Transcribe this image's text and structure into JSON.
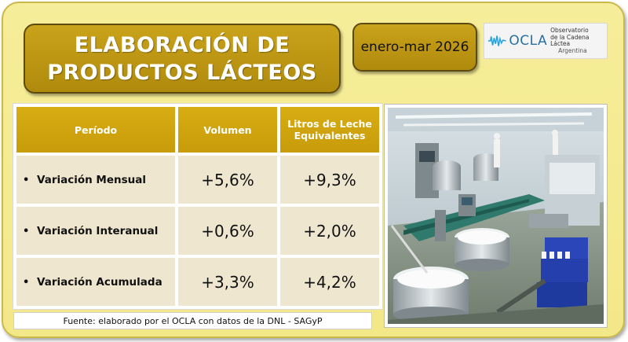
{
  "title": {
    "line1": "ELABORACIÓN DE",
    "line2": "PRODUCTOS LÁCTEOS"
  },
  "period": "enero-mar 2026",
  "logo": {
    "name": "OCLA",
    "line1": "Observatorio",
    "line2": "de la Cadena Láctea",
    "line3": "Argentina"
  },
  "table": {
    "headers": [
      "Período",
      "Volumen",
      "Litros de Leche Equivalentes"
    ],
    "rows": [
      {
        "label": "Variación Mensual",
        "volumen": "+5,6%",
        "litros": "+9,3%"
      },
      {
        "label": "Variación Interanual",
        "volumen": "+0,6%",
        "litros": "+2,0%"
      },
      {
        "label": "Variación Acumulada",
        "volumen": "+3,3%",
        "litros": "+4,2%"
      }
    ]
  },
  "source": "Fuente: elaborado por el OCLA con datos de la DNL - SAGyP",
  "colors": {
    "card_bg": "#f6ed9a",
    "gold": "#c9a31a",
    "header_gold": "#d8ac12",
    "cell_bg": "#eee6ce",
    "logo_blue": "#2a6fa0"
  }
}
